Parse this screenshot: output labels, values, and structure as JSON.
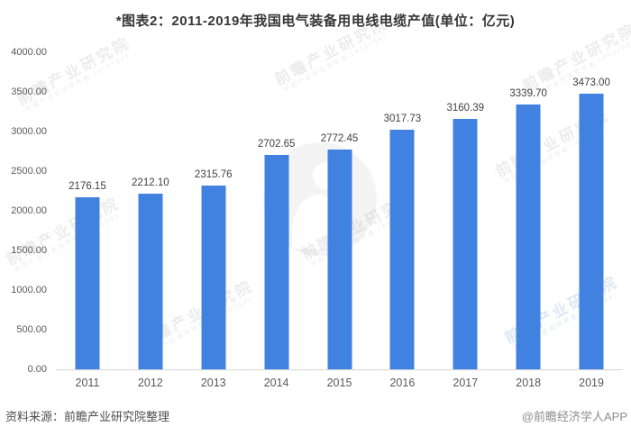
{
  "chart": {
    "title": "*图表2：2011-2019年我国电气装备用电线电缆产值(单位：亿元)"
  },
  "chart_data": {
    "type": "bar",
    "categories": [
      "2011",
      "2012",
      "2013",
      "2014",
      "2015",
      "2016",
      "2017",
      "2018",
      "2019"
    ],
    "values": [
      2176.15,
      2212.1,
      2315.76,
      2702.65,
      2772.45,
      3017.73,
      3160.39,
      3339.7,
      3473.0
    ],
    "value_labels": [
      "2176.15",
      "2212.10",
      "2315.76",
      "2702.65",
      "2772.45",
      "3017.73",
      "3160.39",
      "3339.70",
      "3473.00"
    ],
    "title": "*图表2：2011-2019年我国电气装备用电线电缆产值(单位：亿元)",
    "xlabel": "",
    "ylabel": "",
    "ylim": [
      0,
      4000
    ],
    "yticks": [
      "4000.00",
      "3500.00",
      "3000.00",
      "2500.00",
      "2000.00",
      "1500.00",
      "1000.00",
      "500.00",
      "0.00"
    ],
    "grid": false,
    "legend": false,
    "bar_color": "#4182E1",
    "axis_line_color": "#d6d6d6"
  },
  "watermark": {
    "text": "前瞻产业研究院",
    "subtext": "中国产业咨询领导者（839599）"
  },
  "footer": {
    "source": "资料来源：前瞻产业研究院整理",
    "credit": "@前瞻经济学人APP"
  }
}
